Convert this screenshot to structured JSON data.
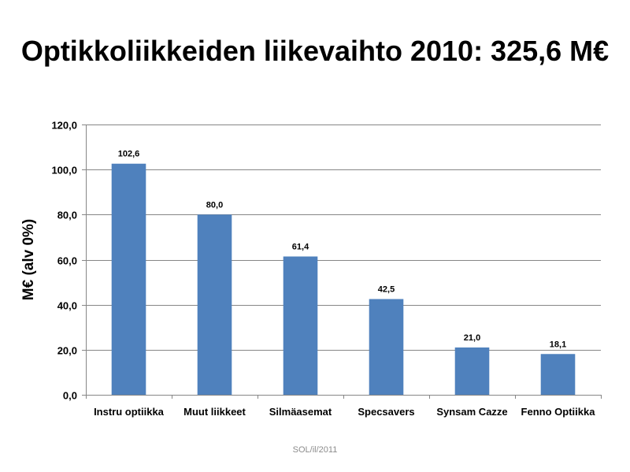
{
  "footer": "SOL/il/2011",
  "chart_data": {
    "type": "bar",
    "title": "Optikkoliikkeiden liikevaihto 2010: 325,6 M€",
    "xlabel": "",
    "ylabel": "M€ (alv 0%)",
    "categories": [
      "Instru optiikka",
      "Muut liikkeet",
      "Silmäasemat",
      "Specsavers",
      "Synsam Cazze",
      "Fenno Optiikka"
    ],
    "values": [
      102.6,
      80.0,
      61.4,
      42.5,
      21.0,
      18.1
    ],
    "value_labels": [
      "102,6",
      "80,0",
      "61,4",
      "42,5",
      "21,0",
      "18,1"
    ],
    "ylim": [
      0,
      120
    ],
    "yticks": [
      0,
      20,
      40,
      60,
      80,
      100,
      120
    ],
    "ytick_labels": [
      "0,0",
      "20,0",
      "40,0",
      "60,0",
      "80,0",
      "100,0",
      "120,0"
    ],
    "grid": true,
    "legend": "none",
    "bar_color": "#4f81bd",
    "grid_color": "#868686"
  }
}
